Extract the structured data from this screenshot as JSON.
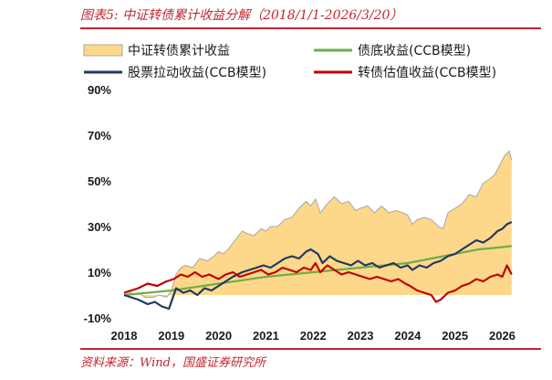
{
  "header": {
    "title": "图表5:  中证转债累计收益分解（2018/1/1-2026/3/20）"
  },
  "footer": {
    "source": "资料来源：Wind，国盛证券研究所"
  },
  "colors": {
    "accent": "#c0272d",
    "area_fill": "#fdd88a",
    "area_stroke": "#a6a6a6",
    "bond_floor": "#70ad47",
    "equity": "#1f3864",
    "valuation": "#c00000"
  },
  "chart_data": {
    "type": "line",
    "legend_placement": "top",
    "grid": false,
    "ylim": [
      -10,
      90
    ],
    "xlim": [
      2018.0,
      2026.3
    ],
    "y_ticks": [
      {
        "value": 90,
        "label": "90%"
      },
      {
        "value": 70,
        "label": "70%"
      },
      {
        "value": 50,
        "label": "50%"
      },
      {
        "value": 30,
        "label": "30%"
      },
      {
        "value": 10,
        "label": "10%"
      },
      {
        "value": -10,
        "label": "-10%"
      }
    ],
    "x_ticks": [
      {
        "value": 2018,
        "label": "2018"
      },
      {
        "value": 2019,
        "label": "2019"
      },
      {
        "value": 2020,
        "label": "2020"
      },
      {
        "value": 2021,
        "label": "2021"
      },
      {
        "value": 2022,
        "label": "2022"
      },
      {
        "value": 2023,
        "label": "2023"
      },
      {
        "value": 2024,
        "label": "2024"
      },
      {
        "value": 2025,
        "label": "2025"
      },
      {
        "value": 2026,
        "label": "2026"
      }
    ],
    "series": [
      {
        "name": "中证转债累计收益",
        "kind": "area",
        "color": "#fdd88a",
        "x": [
          2018.0,
          2018.1,
          2018.2,
          2018.3,
          2018.45,
          2018.6,
          2018.75,
          2018.9,
          2019.0,
          2019.1,
          2019.2,
          2019.3,
          2019.45,
          2019.6,
          2019.75,
          2019.9,
          2020.0,
          2020.1,
          2020.2,
          2020.35,
          2020.5,
          2020.6,
          2020.75,
          2020.9,
          2021.0,
          2021.1,
          2021.25,
          2021.4,
          2021.55,
          2021.7,
          2021.85,
          2021.95,
          2022.05,
          2022.15,
          2022.3,
          2022.45,
          2022.6,
          2022.75,
          2022.9,
          2023.0,
          2023.15,
          2023.3,
          2023.45,
          2023.6,
          2023.75,
          2023.9,
          2024.0,
          2024.1,
          2024.2,
          2024.35,
          2024.5,
          2024.65,
          2024.75,
          2024.85,
          2025.0,
          2025.15,
          2025.3,
          2025.45,
          2025.6,
          2025.75,
          2025.85,
          2025.95,
          2026.05,
          2026.15,
          2026.2
        ],
        "values": [
          1,
          2,
          0,
          1,
          -1,
          -1,
          0,
          -1,
          2,
          9,
          12,
          13,
          12,
          16,
          15,
          17,
          19,
          18,
          20,
          24,
          28,
          27,
          26,
          29,
          28,
          30,
          30,
          33,
          34,
          38,
          41,
          39,
          42,
          36,
          40,
          43,
          40,
          41,
          37,
          38,
          39,
          36,
          39,
          36,
          37,
          36,
          35,
          31,
          33,
          34,
          33,
          30,
          29,
          36,
          38,
          40,
          44,
          43,
          49,
          51,
          53,
          57,
          61,
          63,
          59
        ]
      },
      {
        "name": "债底收益(CCB模型)",
        "kind": "line",
        "color": "#70ad47",
        "x": [
          2018.0,
          2018.5,
          2019.0,
          2019.5,
          2020.0,
          2020.5,
          2021.0,
          2021.5,
          2022.0,
          2022.5,
          2023.0,
          2023.5,
          2024.0,
          2024.5,
          2025.0,
          2025.5,
          2026.0,
          2026.2
        ],
        "values": [
          0,
          1,
          2,
          3.5,
          5,
          6.5,
          8,
          9,
          10,
          11,
          12,
          13,
          14,
          16,
          18,
          20,
          21,
          21.5
        ]
      },
      {
        "name": "股票拉动收益(CCB模型)",
        "kind": "line",
        "color": "#1f3864",
        "x": [
          2018.0,
          2018.15,
          2018.3,
          2018.5,
          2018.65,
          2018.8,
          2018.95,
          2019.1,
          2019.25,
          2019.4,
          2019.55,
          2019.7,
          2019.85,
          2020.0,
          2020.15,
          2020.3,
          2020.5,
          2020.65,
          2020.8,
          2020.95,
          2021.1,
          2021.25,
          2021.4,
          2021.55,
          2021.7,
          2021.85,
          2021.95,
          2022.1,
          2022.2,
          2022.35,
          2022.5,
          2022.65,
          2022.8,
          2022.95,
          2023.1,
          2023.25,
          2023.4,
          2023.55,
          2023.7,
          2023.85,
          2024.0,
          2024.1,
          2024.25,
          2024.4,
          2024.55,
          2024.7,
          2024.85,
          2025.0,
          2025.15,
          2025.3,
          2025.45,
          2025.6,
          2025.75,
          2025.9,
          2026.0,
          2026.1,
          2026.2
        ],
        "values": [
          0,
          -1,
          -2,
          -4,
          -3,
          -5,
          -6,
          3,
          1,
          2,
          0,
          3,
          2,
          4,
          6,
          8,
          10,
          11,
          12,
          13,
          12,
          14,
          16,
          17,
          16,
          19,
          20,
          18,
          14,
          17,
          15,
          14,
          13,
          15,
          13,
          14,
          12,
          13,
          14,
          12,
          13,
          11,
          13,
          12,
          14,
          15,
          17,
          18,
          20,
          22,
          24,
          23,
          25,
          28,
          29,
          31,
          32
        ]
      },
      {
        "name": "转债估值收益(CCB模型)",
        "kind": "line",
        "color": "#c00000",
        "x": [
          2018.0,
          2018.15,
          2018.3,
          2018.5,
          2018.7,
          2018.9,
          2019.05,
          2019.2,
          2019.35,
          2019.5,
          2019.65,
          2019.8,
          2020.0,
          2020.15,
          2020.3,
          2020.45,
          2020.6,
          2020.75,
          2020.9,
          2021.05,
          2021.2,
          2021.35,
          2021.5,
          2021.65,
          2021.8,
          2021.95,
          2022.05,
          2022.15,
          2022.3,
          2022.45,
          2022.6,
          2022.75,
          2022.9,
          2023.05,
          2023.2,
          2023.35,
          2023.5,
          2023.65,
          2023.8,
          2023.95,
          2024.05,
          2024.2,
          2024.35,
          2024.5,
          2024.6,
          2024.7,
          2024.85,
          2025.0,
          2025.15,
          2025.3,
          2025.45,
          2025.6,
          2025.75,
          2025.9,
          2026.0,
          2026.1,
          2026.2
        ],
        "values": [
          1,
          2,
          3,
          5,
          4,
          6,
          7,
          9,
          8,
          10,
          8,
          9,
          7,
          9,
          10,
          8,
          9,
          10,
          11,
          9,
          10,
          12,
          11,
          10,
          12,
          11,
          14,
          10,
          13,
          11,
          9,
          10,
          9,
          8,
          7,
          8,
          7,
          6,
          7,
          5,
          4,
          2,
          1,
          0,
          -3,
          -2,
          1,
          2,
          4,
          5,
          7,
          6,
          8,
          9,
          8,
          13,
          9
        ]
      }
    ]
  }
}
